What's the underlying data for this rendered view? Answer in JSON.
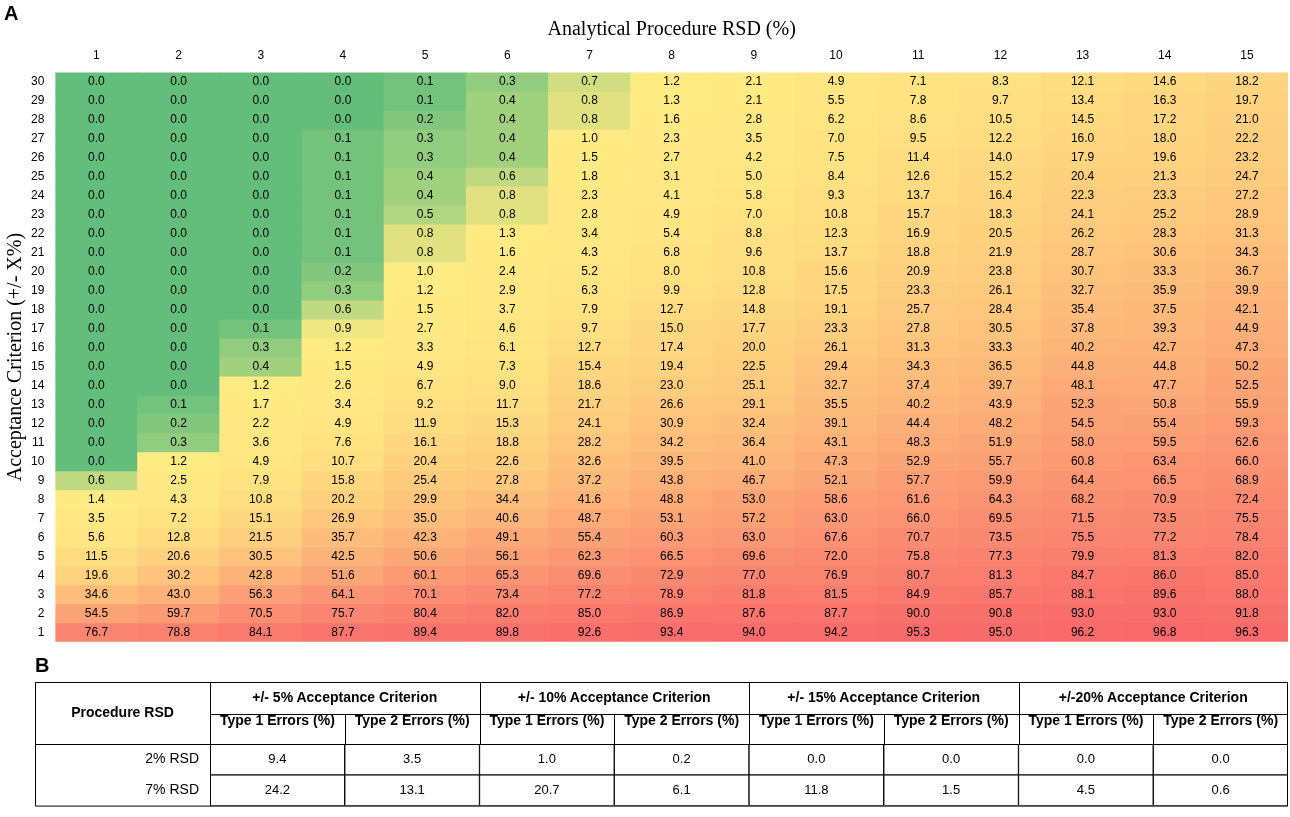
{
  "chart_data": [
    {
      "type": "heatmap",
      "title": "A",
      "xlabel": "Analytical Procedure RSD (%)",
      "ylabel": "Acceptance Criterion (+/- X%)",
      "data_labels": true,
      "categories": [
        "1",
        "2",
        "3",
        "4",
        "5",
        "6",
        "7",
        "8",
        "9",
        "10",
        "11",
        "12",
        "13",
        "14",
        "15"
      ],
      "y_categories": [
        "30",
        "29",
        "28",
        "27",
        "26",
        "25",
        "24",
        "23",
        "22",
        "21",
        "20",
        "19",
        "18",
        "17",
        "16",
        "15",
        "14",
        "13",
        "12",
        "11",
        "10",
        "9",
        "8",
        "7",
        "6",
        "5",
        "4",
        "3",
        "2",
        "1"
      ],
      "cells": [
        [
          0.0,
          0.0,
          0.0,
          0.0,
          0.1,
          0.3,
          0.7,
          1.2,
          2.1,
          4.9,
          7.1,
          8.3,
          12.1,
          14.6,
          18.2
        ],
        [
          0.0,
          0.0,
          0.0,
          0.0,
          0.1,
          0.4,
          0.8,
          1.3,
          2.1,
          5.5,
          7.8,
          9.7,
          13.4,
          16.3,
          19.7
        ],
        [
          0.0,
          0.0,
          0.0,
          0.0,
          0.2,
          0.4,
          0.8,
          1.6,
          2.8,
          6.2,
          8.6,
          10.5,
          14.5,
          17.2,
          21.0
        ],
        [
          0.0,
          0.0,
          0.0,
          0.1,
          0.3,
          0.4,
          1.0,
          2.3,
          3.5,
          7.0,
          9.5,
          12.2,
          16.0,
          18.0,
          22.2
        ],
        [
          0.0,
          0.0,
          0.0,
          0.1,
          0.3,
          0.4,
          1.5,
          2.7,
          4.2,
          7.5,
          11.4,
          14.0,
          17.9,
          19.6,
          23.2
        ],
        [
          0.0,
          0.0,
          0.0,
          0.1,
          0.4,
          0.6,
          1.8,
          3.1,
          5.0,
          8.4,
          12.6,
          15.2,
          20.4,
          21.3,
          24.7
        ],
        [
          0.0,
          0.0,
          0.0,
          0.1,
          0.4,
          0.8,
          2.3,
          4.1,
          5.8,
          9.3,
          13.7,
          16.4,
          22.3,
          23.3,
          27.2
        ],
        [
          0.0,
          0.0,
          0.0,
          0.1,
          0.5,
          0.8,
          2.8,
          4.9,
          7.0,
          10.8,
          15.7,
          18.3,
          24.1,
          25.2,
          28.9
        ],
        [
          0.0,
          0.0,
          0.0,
          0.1,
          0.8,
          1.3,
          3.4,
          5.4,
          8.8,
          12.3,
          16.9,
          20.5,
          26.2,
          28.3,
          31.3
        ],
        [
          0.0,
          0.0,
          0.0,
          0.1,
          0.8,
          1.6,
          4.3,
          6.8,
          9.6,
          13.7,
          18.8,
          21.9,
          28.7,
          30.6,
          34.3
        ],
        [
          0.0,
          0.0,
          0.0,
          0.2,
          1.0,
          2.4,
          5.2,
          8.0,
          10.8,
          15.6,
          20.9,
          23.8,
          30.7,
          33.3,
          36.7
        ],
        [
          0.0,
          0.0,
          0.0,
          0.3,
          1.2,
          2.9,
          6.3,
          9.9,
          12.8,
          17.5,
          23.3,
          26.1,
          32.7,
          35.9,
          39.9
        ],
        [
          0.0,
          0.0,
          0.0,
          0.6,
          1.5,
          3.7,
          7.9,
          12.7,
          14.8,
          19.1,
          25.7,
          28.4,
          35.4,
          37.5,
          42.1
        ],
        [
          0.0,
          0.0,
          0.1,
          0.9,
          2.7,
          4.6,
          9.7,
          15.0,
          17.7,
          23.3,
          27.8,
          30.5,
          37.8,
          39.3,
          44.9
        ],
        [
          0.0,
          0.0,
          0.3,
          1.2,
          3.3,
          6.1,
          12.7,
          17.4,
          20.0,
          26.1,
          31.3,
          33.3,
          40.2,
          42.7,
          47.3
        ],
        [
          0.0,
          0.0,
          0.4,
          1.5,
          4.9,
          7.3,
          15.4,
          19.4,
          22.5,
          29.4,
          34.3,
          36.5,
          44.8,
          44.8,
          50.2
        ],
        [
          0.0,
          0.0,
          1.2,
          2.6,
          6.7,
          9.0,
          18.6,
          23.0,
          25.1,
          32.7,
          37.4,
          39.7,
          48.1,
          47.7,
          52.5
        ],
        [
          0.0,
          0.1,
          1.7,
          3.4,
          9.2,
          11.7,
          21.7,
          26.6,
          29.1,
          35.5,
          40.2,
          43.9,
          52.3,
          50.8,
          55.9
        ],
        [
          0.0,
          0.2,
          2.2,
          4.9,
          11.9,
          15.3,
          24.1,
          30.9,
          32.4,
          39.1,
          44.4,
          48.2,
          54.5,
          55.4,
          59.3
        ],
        [
          0.0,
          0.3,
          3.6,
          7.6,
          16.1,
          18.8,
          28.2,
          34.2,
          36.4,
          43.1,
          48.3,
          51.9,
          58.0,
          59.5,
          62.6
        ],
        [
          0.0,
          1.2,
          4.9,
          10.7,
          20.4,
          22.6,
          32.6,
          39.5,
          41.0,
          47.3,
          52.9,
          55.7,
          60.8,
          63.4,
          66.0
        ],
        [
          0.6,
          2.5,
          7.9,
          15.8,
          25.4,
          27.8,
          37.2,
          43.8,
          46.7,
          52.1,
          57.7,
          59.9,
          64.4,
          66.5,
          68.9
        ],
        [
          1.4,
          4.3,
          10.8,
          20.2,
          29.9,
          34.4,
          41.6,
          48.8,
          53.0,
          58.6,
          61.6,
          64.3,
          68.2,
          70.9,
          72.4
        ],
        [
          3.5,
          7.2,
          15.1,
          26.9,
          35.0,
          40.6,
          48.7,
          53.1,
          57.2,
          63.0,
          66.0,
          69.5,
          71.5,
          73.5,
          75.5
        ],
        [
          5.6,
          12.8,
          21.5,
          35.7,
          42.3,
          49.1,
          55.4,
          60.3,
          63.0,
          67.6,
          70.7,
          73.5,
          75.5,
          77.2,
          78.4
        ],
        [
          11.5,
          20.6,
          30.5,
          42.5,
          50.6,
          56.1,
          62.3,
          66.5,
          69.6,
          72.0,
          75.8,
          77.3,
          79.9,
          81.3,
          82.0
        ],
        [
          19.6,
          30.2,
          42.8,
          51.6,
          60.1,
          65.3,
          69.6,
          72.9,
          77.0,
          76.9,
          80.7,
          81.3,
          84.7,
          86.0,
          85.0
        ],
        [
          34.6,
          43.0,
          56.3,
          64.1,
          70.1,
          73.4,
          77.2,
          78.9,
          81.8,
          81.5,
          84.9,
          85.7,
          88.1,
          89.6,
          88.0
        ],
        [
          54.5,
          59.7,
          70.5,
          75.7,
          80.4,
          82.0,
          85.0,
          86.9,
          87.6,
          87.7,
          90.0,
          90.8,
          93.0,
          93.0,
          91.8
        ],
        [
          76.7,
          78.8,
          84.1,
          87.7,
          89.4,
          89.8,
          92.6,
          93.4,
          94.0,
          94.2,
          95.3,
          95.0,
          96.2,
          96.8,
          96.3
        ]
      ],
      "cell_labels": [
        [
          "0.0",
          "0.0",
          "0.0",
          "0.0",
          "0.1",
          "0.3",
          "0.7",
          "1.2",
          "2.1",
          "4.9",
          "7.1",
          "8.3",
          "12.1",
          "14.6",
          "18.2"
        ],
        [
          "0.0",
          "0.0",
          "0.0",
          "0.0",
          "0.1",
          "0.4",
          "0.8",
          "1.3",
          "2.1",
          "5.5",
          "7.8",
          "9.7",
          "13.4",
          "16.3",
          "19.7"
        ],
        [
          "0.0",
          "0.0",
          "0.0",
          "0.0",
          "0.2",
          "0.4",
          "0.8",
          "1.6",
          "2.8",
          "6.2",
          "8.6",
          "10.5",
          "14.5",
          "17.2",
          "21.0"
        ],
        [
          "0.0",
          "0.0",
          "0.0",
          "0.1",
          "0.3",
          "0.4",
          "1.0",
          "2.3",
          "3.5",
          "7.0",
          "9.5",
          "12.2",
          "16.0",
          "18.0",
          "22.2"
        ],
        [
          "0.0",
          "0.0",
          "0.0",
          "0.1",
          "0.3",
          "0.4",
          "1.5",
          "2.7",
          "4.2",
          "7.5",
          "11.4",
          "14.0",
          "17.9",
          "19.6",
          "23.2"
        ],
        [
          "0.0",
          "0.0",
          "0.0",
          "0.1",
          "0.4",
          "0.6",
          "1.8",
          "3.1",
          "5.0",
          "8.4",
          "12.6",
          "15.2",
          "20.4",
          "21.3",
          "24.7"
        ],
        [
          "0.0",
          "0.0",
          "0.0",
          "0.1",
          "0.4",
          "0.8",
          "2.3",
          "4.1",
          "5.8",
          "9.3",
          "13.7",
          "16.4",
          "22.3",
          "23.3",
          "27.2"
        ],
        [
          "0.0",
          "0.0",
          "0.0",
          "0.1",
          "0.5",
          "0.8",
          "2.8",
          "4.9",
          "7.0",
          "10.8",
          "15.7",
          "18.3",
          "24.1",
          "25.2",
          "28.9"
        ],
        [
          "0.0",
          "0.0",
          "0.0",
          "0.1",
          "0.8",
          "1.3",
          "3.4",
          "5.4",
          "8.8",
          "12.3",
          "16.9",
          "20.5",
          "26.2",
          "28.3",
          "31.3"
        ],
        [
          "0.0",
          "0.0",
          "0.0",
          "0.1",
          "0.8",
          "1.6",
          "4.3",
          "6.8",
          "9.6",
          "13.7",
          "18.8",
          "21.9",
          "28.7",
          "30.6",
          "34.3"
        ],
        [
          "0.0",
          "0.0",
          "0.0",
          "0.2",
          "1.0",
          "2.4",
          "5.2",
          "8.0",
          "10.8",
          "15.6",
          "20.9",
          "23.8",
          "30.7",
          "33.3",
          "36.7"
        ],
        [
          "0.0",
          "0.0",
          "0.0",
          "0.3",
          "1.2",
          "2.9",
          "6.3",
          "9.9",
          "12.8",
          "17.5",
          "23.3",
          "26.1",
          "32.7",
          "35.9",
          "39.9"
        ],
        [
          "0.0",
          "0.0",
          "0.0",
          "0.6",
          "1.5",
          "3.7",
          "7.9",
          "12.7",
          "14.8",
          "19.1",
          "25.7",
          "28.4",
          "35.4",
          "37.5",
          "42.1"
        ],
        [
          "0.0",
          "0.0",
          "0.1",
          "0.9",
          "2.7",
          "4.6",
          "9.7",
          "15.0",
          "17.7",
          "23.3",
          "27.8",
          "30.5",
          "37.8",
          "39.3",
          "44.9"
        ],
        [
          "0.0",
          "0.0",
          "0.3",
          "1.2",
          "3.3",
          "6.1",
          "12.7",
          "17.4",
          "20.0",
          "26.1",
          "31.3",
          "33.3",
          "40.2",
          "42.7",
          "47.3"
        ],
        [
          "0.0",
          "0.0",
          "0.4",
          "1.5",
          "4.9",
          "7.3",
          "15.4",
          "19.4",
          "22.5",
          "29.4",
          "34.3",
          "36.5",
          "44.8",
          "44.8",
          "50.2"
        ],
        [
          "0.0",
          "0.0",
          "1.2",
          "2.6",
          "6.7",
          "9.0",
          "18.6",
          "23.0",
          "25.1",
          "32.7",
          "37.4",
          "39.7",
          "48.1",
          "47.7",
          "52.5"
        ],
        [
          "0.0",
          "0.1",
          "1.7",
          "3.4",
          "9.2",
          "11.7",
          "21.7",
          "26.6",
          "29.1",
          "35.5",
          "40.2",
          "43.9",
          "52.3",
          "50.8",
          "55.9"
        ],
        [
          "0.0",
          "0.2",
          "2.2",
          "4.9",
          "11.9",
          "15.3",
          "24.1",
          "30.9",
          "32.4",
          "39.1",
          "44.4",
          "48.2",
          "54.5",
          "55.4",
          "59.3"
        ],
        [
          "0.0",
          "0.3",
          "3.6",
          "7.6",
          "16.1",
          "18.8",
          "28.2",
          "34.2",
          "36.4",
          "43.1",
          "48.3",
          "51.9",
          "58.0",
          "59.5",
          "62.6"
        ],
        [
          "0.0",
          "1.2",
          "4.9",
          "10.7",
          "20.4",
          "22.6",
          "32.6",
          "39.5",
          "41.0",
          "47.3",
          "52.9",
          "55.7",
          "60.8",
          "63.4",
          "66.0"
        ],
        [
          "0.6",
          "2.5",
          "7.9",
          "15.8",
          "25.4",
          "27.8",
          "37.2",
          "43.8",
          "46.7",
          "52.1",
          "57.7",
          "59.9",
          "64.4",
          "66.5",
          "68.9"
        ],
        [
          "1.4",
          "4.3",
          "10.8",
          "20.2",
          "29.9",
          "34.4",
          "41.6",
          "48.8",
          "53.0",
          "58.6",
          "61.6",
          "64.3",
          "68.2",
          "70.9",
          "72.4"
        ],
        [
          "3.5",
          "7.2",
          "15.1",
          "26.9",
          "35.0",
          "40.6",
          "48.7",
          "53.1",
          "57.2",
          "63.0",
          "66.0",
          "69.5",
          "71.5",
          "73.5",
          "75.5"
        ],
        [
          "5.6",
          "12.8",
          "21.5",
          "35.7",
          "42.3",
          "49.1",
          "55.4",
          "60.3",
          "63.0",
          "67.6",
          "70.7",
          "73.5",
          "75.5",
          "77.2",
          "78.4"
        ],
        [
          "11.5",
          "20.6",
          "30.5",
          "42.5",
          "50.6",
          "56.1",
          "62.3",
          "66.5",
          "69.6",
          "72.0",
          "75.8",
          "77.3",
          "79.9",
          "81.3",
          "82.0"
        ],
        [
          "19.6",
          "30.2",
          "42.8",
          "51.6",
          "60.1",
          "65.3",
          "69.6",
          "72.9",
          "77.0",
          "76.9",
          "80.7",
          "81.3",
          "84.7",
          "86.0",
          "85.0"
        ],
        [
          "34.6",
          "43.0",
          "56.3",
          "64.1",
          "70.1",
          "73.4",
          "77.2",
          "78.9",
          "81.8",
          "81.5",
          "84.9",
          "85.7",
          "88.1",
          "89.6",
          "88.0"
        ],
        [
          "54.5",
          "59.7",
          "70.5",
          "75.7",
          "80.4",
          "82.0",
          "85.0",
          "86.9",
          "87.6",
          "87.7",
          "90.0",
          "90.8",
          "93.0",
          "93.0",
          "91.8"
        ],
        [
          "76.7",
          "78.8",
          "84.1",
          "87.7",
          "89.4",
          "89.8",
          "92.6",
          "93.4",
          "94.0",
          "94.2",
          "95.3",
          "95.0",
          "96.2",
          "96.8",
          "96.3"
        ]
      ]
    },
    {
      "type": "heatmap",
      "title": "B",
      "ylabel": "Procedure RSD",
      "color": "#ffffff",
      "data_labels": true,
      "annotations": [
        "+/- 5% Acceptance Criterion",
        "+/- 10% Acceptance Criterion",
        "+/- 15% Acceptance Criterion",
        "+/-20% Acceptance Criterion"
      ],
      "categories": [
        "Type 1 Errors (%)",
        "Type 2 Errors (%)",
        "Type 1 Errors (%)",
        "Type 2 Errors (%)",
        "Type 1 Errors (%)",
        "Type 2 Errors (%)",
        "Type 1 Errors (%)",
        "Type 2 Errors (%)"
      ],
      "y_categories": [
        "2% RSD",
        "7% RSD"
      ],
      "cells": [
        [
          9.4,
          3.5,
          1.0,
          0.2,
          0.0,
          0.0,
          0.0,
          0.0
        ],
        [
          24.2,
          13.1,
          20.7,
          6.1,
          11.8,
          1.5,
          4.5,
          0.6
        ]
      ],
      "cell_labels": [
        [
          "9.4",
          "3.5",
          "1.0",
          "0.2",
          "0.0",
          "0.0",
          "0.0",
          "0.0"
        ],
        [
          "24.2",
          "13.1",
          "20.7",
          "6.1",
          "11.8",
          "1.5",
          "4.5",
          "0.6"
        ]
      ]
    }
  ]
}
